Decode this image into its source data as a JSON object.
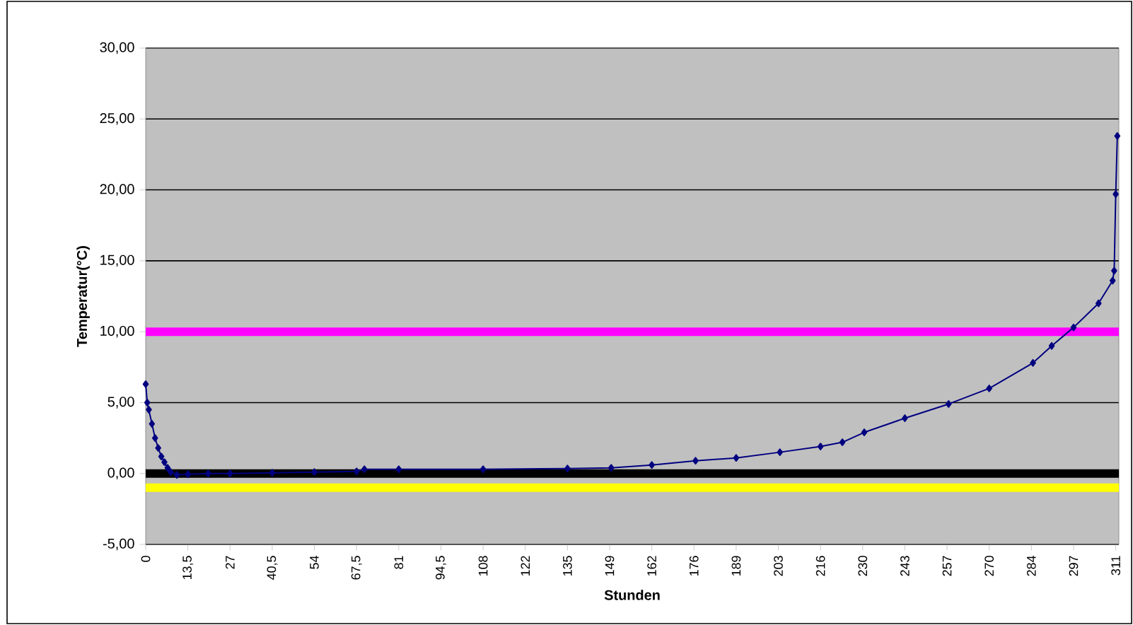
{
  "chart_data": {
    "type": "line",
    "xlabel": "Stunden",
    "ylabel": "Temperatur(°C)",
    "x": [
      0,
      0.5,
      1,
      2,
      3,
      4,
      5,
      6,
      7,
      8,
      10,
      13.5,
      20,
      27,
      40.5,
      54,
      67.5,
      70,
      81,
      108,
      135,
      149,
      162,
      176,
      189,
      203,
      216,
      223,
      230,
      243,
      257,
      270,
      284,
      290,
      297,
      305,
      309.5,
      310,
      310.5,
      311
    ],
    "series": [
      {
        "color": "#000080",
        "values": [
          6.3,
          5.0,
          4.5,
          3.5,
          2.5,
          1.8,
          1.2,
          0.8,
          0.4,
          0.1,
          -0.1,
          -0.05,
          0,
          0,
          0.05,
          0.1,
          0.15,
          0.3,
          0.3,
          0.3,
          0.35,
          0.4,
          0.6,
          0.9,
          1.1,
          1.5,
          1.9,
          2.2,
          2.9,
          3.9,
          4.9,
          6.0,
          7.8,
          9.0,
          10.3,
          12.0,
          13.6,
          14.3,
          19.7,
          23.8
        ]
      }
    ],
    "marker": "diamond",
    "xlim": [
      0,
      311.5
    ],
    "xticks": [
      {
        "value": 0,
        "label": "0"
      },
      {
        "value": 13.5,
        "label": "13,5"
      },
      {
        "value": 27,
        "label": "27"
      },
      {
        "value": 40.5,
        "label": "40,5"
      },
      {
        "value": 54,
        "label": "54"
      },
      {
        "value": 67.5,
        "label": "67,5"
      },
      {
        "value": 81,
        "label": "81"
      },
      {
        "value": 94.5,
        "label": "94,5"
      },
      {
        "value": 108,
        "label": "108"
      },
      {
        "value": 121.5,
        "label": "122"
      },
      {
        "value": 135,
        "label": "135"
      },
      {
        "value": 148.5,
        "label": "149"
      },
      {
        "value": 162,
        "label": "162"
      },
      {
        "value": 175.5,
        "label": "176"
      },
      {
        "value": 189,
        "label": "189"
      },
      {
        "value": 202.5,
        "label": "203"
      },
      {
        "value": 216,
        "label": "216"
      },
      {
        "value": 229.5,
        "label": "230"
      },
      {
        "value": 243,
        "label": "243"
      },
      {
        "value": 256.5,
        "label": "257"
      },
      {
        "value": 270,
        "label": "270"
      },
      {
        "value": 283.5,
        "label": "284"
      },
      {
        "value": 297,
        "label": "297"
      },
      {
        "value": 310.5,
        "label": "311"
      }
    ],
    "ylim": [
      -5,
      30
    ],
    "yticks": [
      {
        "value": -5,
        "label": "-5,00"
      },
      {
        "value": 0,
        "label": "0,00"
      },
      {
        "value": 5,
        "label": "5,00"
      },
      {
        "value": 10,
        "label": "10,00"
      },
      {
        "value": 15,
        "label": "15,00"
      },
      {
        "value": 20,
        "label": "20,00"
      },
      {
        "value": 25,
        "label": "25,00"
      },
      {
        "value": 30,
        "label": "30,00"
      }
    ],
    "grid": "y",
    "ref_lines": [
      {
        "axis": "y",
        "value": 10,
        "color": "#ff00ff"
      },
      {
        "axis": "y",
        "value": 0,
        "color": "#000000"
      },
      {
        "axis": "y",
        "value": -1,
        "color": "#ffff00"
      }
    ]
  }
}
